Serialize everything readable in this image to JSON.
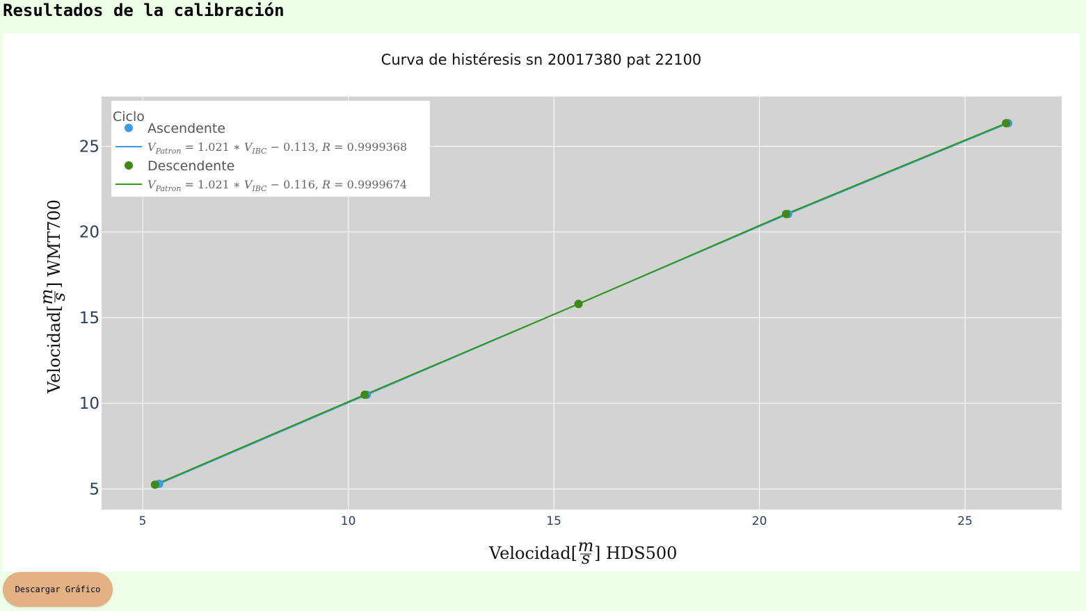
{
  "page": {
    "title": "Resultados de la calibración",
    "download_label": "Descargar Gráfico"
  },
  "colors": {
    "plot_bg": "#d3d3d3",
    "grid": "#ffffff",
    "ascendente": "#3a9be8",
    "descendente": "#3f8a12",
    "descendente_line": "#2e9a10"
  },
  "chart_data": {
    "type": "scatter",
    "title": "Curva de histéresis sn 20017380 pat 22100",
    "xlabel": {
      "main": "Velocidad",
      "frac_num": "m",
      "frac_den": "s",
      "suffix": "HDS500"
    },
    "ylabel": {
      "main": "Velocidad",
      "frac_num": "m",
      "frac_den": "s",
      "suffix": "WMT700"
    },
    "xlim": [
      4.0,
      27.35
    ],
    "ylim": [
      3.8,
      27.9
    ],
    "x_ticks": [
      5,
      10,
      15,
      20,
      25
    ],
    "y_ticks": [
      5,
      10,
      15,
      20,
      25
    ],
    "grid": true,
    "legend": {
      "title": "Ciclo",
      "position": "top-left",
      "entries": [
        {
          "name": "Ascendente",
          "kind": "marker",
          "series": 0
        },
        {
          "name": "V_Patron = 1.021 * V_IBC - 0.113, R = 0.9999368",
          "kind": "line",
          "series": 0,
          "eq": {
            "v": "V",
            "sub": "Patron",
            "mid": " = 1.021 ∗ ",
            "v2": "V",
            "sub2": "IBC",
            "rest": " − 0.113, ",
            "r": "R",
            "rval": " = 0.9999368"
          }
        },
        {
          "name": "Descendente",
          "kind": "marker",
          "series": 1
        },
        {
          "name": "V_Patron = 1.021 * V_IBC - 0.116, R = 0.9999674",
          "kind": "line",
          "series": 1,
          "eq": {
            "v": "V",
            "sub": "Patron",
            "mid": " = 1.021 ∗ ",
            "v2": "V",
            "sub2": "IBC",
            "rest": " − 0.116, ",
            "r": "R",
            "rval": " = 0.9999674"
          }
        }
      ]
    },
    "series": [
      {
        "name": "Ascendente",
        "x": [
          5.4,
          10.45,
          15.6,
          20.7,
          26.05
        ],
        "y": [
          5.3,
          10.5,
          15.8,
          21.05,
          26.35
        ],
        "fit": {
          "slope": 1.021,
          "intercept": -0.113,
          "R": 0.9999368
        }
      },
      {
        "name": "Descendente",
        "x": [
          5.3,
          10.4,
          15.6,
          20.65,
          26.0
        ],
        "y": [
          5.25,
          10.5,
          15.8,
          21.05,
          26.35
        ],
        "fit": {
          "slope": 1.021,
          "intercept": -0.116,
          "R": 0.9999674
        }
      }
    ]
  }
}
